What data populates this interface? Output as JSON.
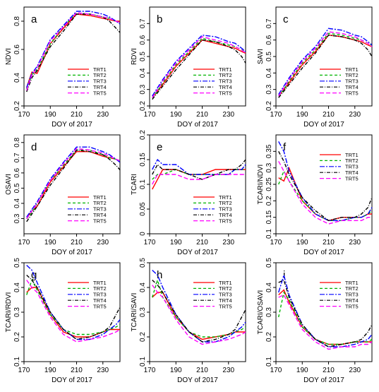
{
  "figure": {
    "xlabel": "DOY of 2017",
    "legend_labels": [
      "TRT1",
      "TRT2",
      "TRT3",
      "TRT4",
      "TRT5"
    ]
  },
  "series_styles": [
    {
      "name": "TRT1",
      "color": "#ff0000",
      "dash": ""
    },
    {
      "name": "TRT2",
      "color": "#00b400",
      "dash": "4,3"
    },
    {
      "name": "TRT3",
      "color": "#0000ff",
      "dash": "7,2,2,2"
    },
    {
      "name": "TRT4",
      "color": "#000000",
      "dash": "5,2,1,2"
    },
    {
      "name": "TRT5",
      "color": "#ff00ff",
      "dash": "6,3"
    }
  ],
  "chart_data": [
    {
      "type": "line",
      "panel": "a",
      "ylabel": "NDVI",
      "x": [
        172,
        176,
        180,
        190,
        200,
        210,
        220,
        230,
        235,
        240,
        243
      ],
      "xlim": [
        170,
        243
      ],
      "ylim": [
        0.2,
        0.9
      ],
      "yticks": [
        0.2,
        0.4,
        0.6,
        0.8
      ],
      "xticks": [
        170,
        190,
        210,
        230
      ],
      "legend_position": "bottom-right",
      "series": [
        {
          "name": "TRT1",
          "values": [
            0.33,
            0.44,
            0.43,
            0.64,
            0.75,
            0.85,
            0.84,
            0.82,
            0.81,
            0.8,
            0.8
          ]
        },
        {
          "name": "TRT2",
          "values": [
            0.32,
            0.42,
            0.46,
            0.64,
            0.76,
            0.86,
            0.85,
            0.83,
            0.82,
            0.8,
            0.79
          ]
        },
        {
          "name": "TRT3",
          "values": [
            0.33,
            0.43,
            0.48,
            0.67,
            0.77,
            0.87,
            0.87,
            0.85,
            0.83,
            0.8,
            0.78
          ]
        },
        {
          "name": "TRT4",
          "values": [
            0.3,
            0.4,
            0.45,
            0.62,
            0.73,
            0.85,
            0.85,
            0.83,
            0.8,
            0.75,
            0.72
          ]
        },
        {
          "name": "TRT5",
          "values": [
            0.31,
            0.42,
            0.47,
            0.66,
            0.76,
            0.86,
            0.85,
            0.83,
            0.82,
            0.8,
            0.79
          ]
        }
      ]
    },
    {
      "type": "line",
      "panel": "b",
      "ylabel": "RDVI",
      "x": [
        172,
        176,
        180,
        190,
        200,
        210,
        220,
        230,
        235,
        240,
        243
      ],
      "xlim": [
        170,
        243
      ],
      "ylim": [
        0.2,
        0.8
      ],
      "yticks": [
        0.2,
        0.3,
        0.4,
        0.5,
        0.6,
        0.7
      ],
      "xticks": [
        170,
        190,
        210,
        230
      ],
      "legend_position": "bottom-right",
      "series": [
        {
          "name": "TRT1",
          "values": [
            0.25,
            0.29,
            0.33,
            0.44,
            0.52,
            0.6,
            0.58,
            0.56,
            0.55,
            0.53,
            0.52
          ]
        },
        {
          "name": "TRT2",
          "values": [
            0.25,
            0.29,
            0.34,
            0.45,
            0.53,
            0.61,
            0.59,
            0.57,
            0.56,
            0.54,
            0.53
          ]
        },
        {
          "name": "TRT3",
          "values": [
            0.26,
            0.31,
            0.36,
            0.47,
            0.55,
            0.63,
            0.62,
            0.59,
            0.58,
            0.55,
            0.53
          ]
        },
        {
          "name": "TRT4",
          "values": [
            0.24,
            0.28,
            0.32,
            0.42,
            0.51,
            0.6,
            0.59,
            0.56,
            0.54,
            0.5,
            0.46
          ]
        },
        {
          "name": "TRT5",
          "values": [
            0.25,
            0.3,
            0.35,
            0.46,
            0.54,
            0.62,
            0.6,
            0.58,
            0.56,
            0.54,
            0.52
          ]
        }
      ]
    },
    {
      "type": "line",
      "panel": "c",
      "ylabel": "SAVI",
      "x": [
        172,
        176,
        180,
        190,
        200,
        210,
        220,
        230,
        235,
        240,
        243
      ],
      "xlim": [
        170,
        243
      ],
      "ylim": [
        0.2,
        0.8
      ],
      "yticks": [
        0.2,
        0.3,
        0.4,
        0.5,
        0.6,
        0.7
      ],
      "xticks": [
        170,
        190,
        210,
        230
      ],
      "legend_position": "bottom-right",
      "series": [
        {
          "name": "TRT1",
          "values": [
            0.26,
            0.3,
            0.34,
            0.45,
            0.53,
            0.63,
            0.62,
            0.6,
            0.59,
            0.57,
            0.56
          ]
        },
        {
          "name": "TRT2",
          "values": [
            0.26,
            0.3,
            0.35,
            0.46,
            0.54,
            0.64,
            0.63,
            0.61,
            0.6,
            0.58,
            0.57
          ]
        },
        {
          "name": "TRT3",
          "values": [
            0.27,
            0.32,
            0.37,
            0.48,
            0.56,
            0.67,
            0.66,
            0.63,
            0.62,
            0.59,
            0.57
          ]
        },
        {
          "name": "TRT4",
          "values": [
            0.25,
            0.29,
            0.33,
            0.43,
            0.52,
            0.63,
            0.62,
            0.6,
            0.58,
            0.54,
            0.5
          ]
        },
        {
          "name": "TRT5",
          "values": [
            0.26,
            0.31,
            0.36,
            0.47,
            0.55,
            0.65,
            0.64,
            0.62,
            0.6,
            0.58,
            0.56
          ]
        }
      ]
    },
    {
      "type": "line",
      "panel": "d",
      "ylabel": "OSAVI",
      "x": [
        172,
        176,
        180,
        190,
        200,
        210,
        220,
        230,
        235,
        240,
        243
      ],
      "xlim": [
        170,
        243
      ],
      "ylim": [
        0.2,
        0.85
      ],
      "yticks": [
        0.3,
        0.4,
        0.5,
        0.6,
        0.7,
        0.8
      ],
      "xticks": [
        170,
        190,
        210,
        230
      ],
      "legend_position": "bottom-right",
      "series": [
        {
          "name": "TRT1",
          "values": [
            0.3,
            0.35,
            0.38,
            0.54,
            0.64,
            0.74,
            0.74,
            0.71,
            0.7,
            0.69,
            0.68
          ]
        },
        {
          "name": "TRT2",
          "values": [
            0.3,
            0.34,
            0.4,
            0.55,
            0.65,
            0.75,
            0.75,
            0.72,
            0.7,
            0.69,
            0.68
          ]
        },
        {
          "name": "TRT3",
          "values": [
            0.31,
            0.36,
            0.41,
            0.56,
            0.67,
            0.77,
            0.77,
            0.74,
            0.72,
            0.69,
            0.67
          ]
        },
        {
          "name": "TRT4",
          "values": [
            0.28,
            0.33,
            0.38,
            0.52,
            0.63,
            0.75,
            0.74,
            0.72,
            0.69,
            0.65,
            0.62
          ]
        },
        {
          "name": "TRT5",
          "values": [
            0.3,
            0.35,
            0.4,
            0.55,
            0.66,
            0.76,
            0.75,
            0.73,
            0.71,
            0.69,
            0.68
          ]
        }
      ]
    },
    {
      "type": "line",
      "panel": "e",
      "ylabel": "TCARI",
      "x": [
        172,
        176,
        180,
        190,
        200,
        210,
        220,
        230,
        235,
        240,
        243
      ],
      "xlim": [
        170,
        243
      ],
      "ylim": [
        0.0,
        0.2
      ],
      "yticks": [
        0.0,
        0.05,
        0.1,
        0.15,
        0.2
      ],
      "xticks": [
        170,
        190,
        210,
        230
      ],
      "legend_position": "bottom-right",
      "series": [
        {
          "name": "TRT1",
          "values": [
            0.09,
            0.11,
            0.13,
            0.13,
            0.12,
            0.12,
            0.13,
            0.13,
            0.13,
            0.13,
            0.13
          ]
        },
        {
          "name": "TRT2",
          "values": [
            0.11,
            0.12,
            0.12,
            0.13,
            0.12,
            0.12,
            0.12,
            0.12,
            0.13,
            0.13,
            0.13
          ]
        },
        {
          "name": "TRT3",
          "values": [
            0.13,
            0.15,
            0.14,
            0.14,
            0.12,
            0.12,
            0.12,
            0.12,
            0.13,
            0.13,
            0.14
          ]
        },
        {
          "name": "TRT4",
          "values": [
            0.12,
            0.14,
            0.13,
            0.13,
            0.12,
            0.11,
            0.12,
            0.13,
            0.13,
            0.14,
            0.15
          ]
        },
        {
          "name": "TRT5",
          "values": [
            0.1,
            0.12,
            0.12,
            0.12,
            0.11,
            0.11,
            0.12,
            0.12,
            0.12,
            0.12,
            0.12
          ]
        }
      ]
    },
    {
      "type": "line",
      "panel": "f",
      "ylabel": "TCARI/NDVI",
      "x": [
        172,
        176,
        180,
        190,
        200,
        210,
        220,
        230,
        235,
        240,
        243
      ],
      "xlim": [
        170,
        243
      ],
      "ylim": [
        0.1,
        0.4
      ],
      "yticks": [
        0.1,
        0.15,
        0.2,
        0.25,
        0.3,
        0.35
      ],
      "xticks": [
        170,
        190,
        210,
        230
      ],
      "legend_position": "top-right",
      "series": [
        {
          "name": "TRT1",
          "values": [
            0.27,
            0.26,
            0.3,
            0.2,
            0.16,
            0.14,
            0.15,
            0.15,
            0.15,
            0.16,
            0.16
          ]
        },
        {
          "name": "TRT2",
          "values": [
            0.25,
            0.29,
            0.26,
            0.2,
            0.16,
            0.14,
            0.14,
            0.15,
            0.15,
            0.16,
            0.17
          ]
        },
        {
          "name": "TRT3",
          "values": [
            0.38,
            0.35,
            0.29,
            0.21,
            0.16,
            0.14,
            0.14,
            0.15,
            0.15,
            0.16,
            0.18
          ]
        },
        {
          "name": "TRT4",
          "values": [
            0.35,
            0.32,
            0.28,
            0.21,
            0.17,
            0.14,
            0.15,
            0.15,
            0.16,
            0.18,
            0.21
          ]
        },
        {
          "name": "TRT5",
          "values": [
            0.32,
            0.29,
            0.26,
            0.19,
            0.15,
            0.13,
            0.14,
            0.14,
            0.14,
            0.15,
            0.15
          ]
        }
      ]
    },
    {
      "type": "line",
      "panel": "g",
      "ylabel": "TCARI/RDVI",
      "x": [
        172,
        176,
        180,
        190,
        200,
        210,
        220,
        230,
        235,
        240,
        243
      ],
      "xlim": [
        170,
        243
      ],
      "ylim": [
        0.1,
        0.5
      ],
      "yticks": [
        0.1,
        0.2,
        0.3,
        0.4,
        0.5
      ],
      "xticks": [
        170,
        190,
        210,
        230
      ],
      "legend_position": "top-right",
      "series": [
        {
          "name": "TRT1",
          "values": [
            0.38,
            0.4,
            0.4,
            0.29,
            0.22,
            0.2,
            0.2,
            0.22,
            0.23,
            0.23,
            0.23
          ]
        },
        {
          "name": "TRT2",
          "values": [
            0.37,
            0.43,
            0.39,
            0.29,
            0.23,
            0.21,
            0.21,
            0.22,
            0.23,
            0.24,
            0.25
          ]
        },
        {
          "name": "TRT3",
          "values": [
            0.49,
            0.47,
            0.42,
            0.3,
            0.23,
            0.19,
            0.19,
            0.21,
            0.23,
            0.25,
            0.27
          ]
        },
        {
          "name": "TRT4",
          "values": [
            0.45,
            0.43,
            0.4,
            0.3,
            0.23,
            0.19,
            0.2,
            0.22,
            0.24,
            0.29,
            0.32
          ]
        },
        {
          "name": "TRT5",
          "values": [
            0.43,
            0.4,
            0.38,
            0.28,
            0.21,
            0.18,
            0.19,
            0.2,
            0.21,
            0.22,
            0.23
          ]
        }
      ]
    },
    {
      "type": "line",
      "panel": "h",
      "ylabel": "TCARI/SAVI",
      "x": [
        172,
        176,
        180,
        190,
        200,
        210,
        220,
        230,
        235,
        240,
        243
      ],
      "xlim": [
        170,
        243
      ],
      "ylim": [
        0.1,
        0.5
      ],
      "yticks": [
        0.1,
        0.2,
        0.3,
        0.4,
        0.5
      ],
      "xticks": [
        170,
        190,
        210,
        230
      ],
      "legend_position": "top-right",
      "series": [
        {
          "name": "TRT1",
          "values": [
            0.36,
            0.38,
            0.38,
            0.28,
            0.22,
            0.19,
            0.2,
            0.21,
            0.22,
            0.22,
            0.22
          ]
        },
        {
          "name": "TRT2",
          "values": [
            0.36,
            0.43,
            0.36,
            0.28,
            0.22,
            0.2,
            0.2,
            0.21,
            0.22,
            0.23,
            0.24
          ]
        },
        {
          "name": "TRT3",
          "values": [
            0.47,
            0.45,
            0.4,
            0.29,
            0.22,
            0.18,
            0.18,
            0.2,
            0.22,
            0.24,
            0.26
          ]
        },
        {
          "name": "TRT4",
          "values": [
            0.43,
            0.41,
            0.38,
            0.29,
            0.22,
            0.18,
            0.19,
            0.21,
            0.23,
            0.28,
            0.31
          ]
        },
        {
          "name": "TRT5",
          "values": [
            0.41,
            0.38,
            0.36,
            0.27,
            0.2,
            0.17,
            0.18,
            0.19,
            0.2,
            0.21,
            0.22
          ]
        }
      ]
    },
    {
      "type": "line",
      "panel": "i",
      "ylabel": "TCARI/OSAVI",
      "x": [
        172,
        176,
        180,
        190,
        200,
        210,
        220,
        230,
        235,
        240,
        243
      ],
      "xlim": [
        170,
        243
      ],
      "ylim": [
        0.1,
        0.5
      ],
      "yticks": [
        0.1,
        0.2,
        0.3,
        0.4,
        0.5
      ],
      "xticks": [
        170,
        190,
        210,
        230
      ],
      "legend_position": "top-right",
      "series": [
        {
          "name": "TRT1",
          "values": [
            0.37,
            0.39,
            0.34,
            0.24,
            0.19,
            0.17,
            0.17,
            0.18,
            0.18,
            0.18,
            0.18
          ]
        },
        {
          "name": "TRT2",
          "values": [
            0.28,
            0.38,
            0.35,
            0.24,
            0.19,
            0.17,
            0.17,
            0.18,
            0.18,
            0.18,
            0.19
          ]
        },
        {
          "name": "TRT3",
          "values": [
            0.38,
            0.45,
            0.37,
            0.25,
            0.19,
            0.16,
            0.16,
            0.17,
            0.18,
            0.19,
            0.21
          ]
        },
        {
          "name": "TRT4",
          "values": [
            0.42,
            0.43,
            0.36,
            0.25,
            0.19,
            0.16,
            0.17,
            0.18,
            0.19,
            0.22,
            0.25
          ]
        },
        {
          "name": "TRT5",
          "values": [
            0.36,
            0.37,
            0.33,
            0.23,
            0.18,
            0.15,
            0.16,
            0.16,
            0.17,
            0.17,
            0.18
          ]
        }
      ]
    }
  ]
}
